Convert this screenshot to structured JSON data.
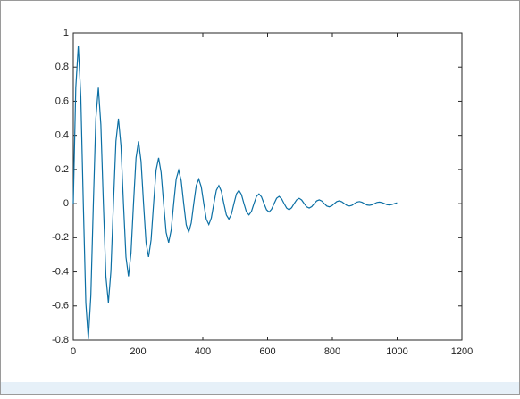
{
  "chart_data": {
    "type": "line",
    "xlim": [
      0,
      1200
    ],
    "xticks": [
      0,
      200,
      400,
      600,
      800,
      1000,
      1200
    ],
    "ylim": [
      -0.8,
      1
    ],
    "yticks": [
      -0.8,
      -0.6,
      -0.4,
      -0.2,
      0,
      0.2,
      0.4,
      0.6,
      0.8,
      1
    ],
    "x": [
      0,
      7.75,
      15.5,
      23.25,
      31,
      38.75,
      46.5,
      54.25,
      62,
      69.75,
      77.5,
      85.25,
      93,
      100.75,
      108.5,
      116.25,
      124,
      131.75,
      139.5,
      147.25,
      155,
      162.75,
      170.5,
      178.25,
      186,
      193.75,
      201.5,
      209.25,
      217,
      224.75,
      232.5,
      240.25,
      248,
      255.75,
      263.5,
      271.25,
      279,
      286.75,
      294.5,
      302.25,
      310,
      317.75,
      325.5,
      333.25,
      341,
      348.75,
      356.5,
      364.25,
      372,
      379.75,
      387.5,
      395.25,
      403,
      410.75,
      418.5,
      426.25,
      434,
      441.75,
      449.5,
      457.25,
      465,
      472.75,
      480.5,
      488.25,
      496,
      503.75,
      511.5,
      519.25,
      527,
      534.75,
      542.5,
      550.25,
      558,
      565.75,
      573.5,
      581.25,
      589,
      596.75,
      604.5,
      612.25,
      620,
      627.75,
      635.5,
      643.25,
      651,
      658.75,
      666.5,
      674.25,
      682,
      689.75,
      697.5,
      705.25,
      713,
      720.75,
      728.5,
      736.25,
      744,
      751.75,
      759.5,
      767.25,
      775,
      782.75,
      790.5,
      798.25,
      806,
      813.75,
      821.5,
      829.25,
      837,
      844.75,
      852.5,
      860.25,
      868,
      875.75,
      883.5,
      891.25,
      899,
      906.75,
      914.5,
      922.25,
      930,
      937.75,
      945.5,
      953.25,
      961,
      968.75,
      976.5,
      984.25,
      992,
      999.75
    ],
    "series": [
      {
        "color": "#0b6fa4",
        "values": [
          0,
          0.68,
          0.925,
          0.629,
          0,
          -0.583,
          -0.793,
          -0.539,
          0,
          0.499,
          0.679,
          0.462,
          0,
          -0.427,
          -0.581,
          -0.395,
          0,
          0.366,
          0.498,
          0.339,
          0,
          -0.313,
          -0.426,
          -0.29,
          0,
          0.268,
          0.365,
          0.248,
          0,
          -0.23,
          -0.313,
          -0.213,
          0,
          0.197,
          0.268,
          0.182,
          0,
          -0.169,
          -0.229,
          -0.156,
          0,
          0.144,
          0.196,
          0.134,
          0,
          -0.124,
          -0.168,
          -0.114,
          0,
          0.106,
          0.144,
          0.098,
          0,
          -0.091,
          -0.123,
          -0.084,
          0,
          0.078,
          0.106,
          0.072,
          0,
          -0.067,
          -0.091,
          -0.062,
          0,
          0.057,
          0.078,
          0.053,
          0,
          -0.049,
          -0.066,
          -0.045,
          0,
          0.042,
          0.057,
          0.039,
          0,
          -0.036,
          -0.049,
          -0.033,
          0,
          0.031,
          0.042,
          0.028,
          0,
          -0.026,
          -0.036,
          -0.024,
          0,
          0.022,
          0.031,
          0.021,
          0,
          -0.019,
          -0.026,
          -0.018,
          0,
          0.016,
          0.022,
          0.015,
          0,
          -0.014,
          -0.019,
          -0.013,
          0,
          0.012,
          0.016,
          0.011,
          0,
          -0.01,
          -0.014,
          -0.01,
          0,
          0.009,
          0.012,
          0.008,
          0,
          -0.008,
          -0.01,
          -0.007,
          0,
          0.007,
          0.009,
          0.006,
          0,
          -0.006,
          -0.008,
          -0.005,
          0,
          0.005
        ]
      }
    ]
  }
}
